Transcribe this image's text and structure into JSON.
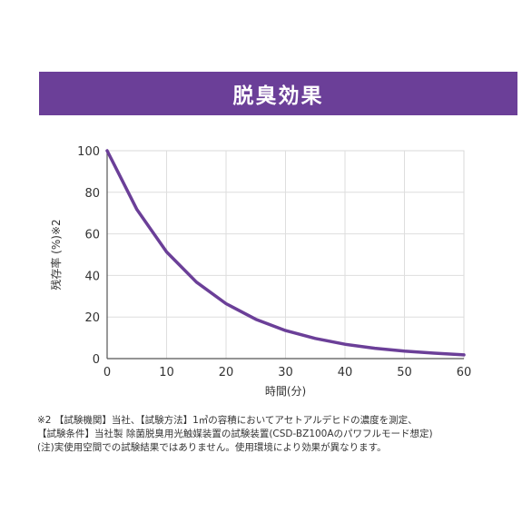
{
  "banner": {
    "title": "脱臭効果"
  },
  "chart_data": {
    "type": "line",
    "title": "",
    "xlabel": "時間(分)",
    "ylabel": "残存率 (%)※2",
    "xlim": [
      0,
      60
    ],
    "ylim": [
      0,
      100
    ],
    "xticks": [
      0,
      10,
      20,
      30,
      40,
      50,
      60
    ],
    "yticks": [
      0,
      20,
      40,
      60,
      80,
      100
    ],
    "grid": true,
    "line_color": "#6b3f98",
    "series": [
      {
        "x": [
          0,
          5,
          10,
          15,
          20,
          25,
          30,
          35,
          40,
          45,
          50,
          55,
          60
        ],
        "values": [
          100,
          71.7,
          51.3,
          36.8,
          26.4,
          18.9,
          13.5,
          9.7,
          6.9,
          5.0,
          3.6,
          2.6,
          1.8
        ]
      }
    ]
  },
  "notes": [
    "※2 【試験機関】当社、【試験方法】1㎥の容積においてアセトアルデヒドの濃度を測定、",
    "【試験条件】当社製 除菌脱臭用光触媒装置の試験装置(CSD-BZ100Aのパワフルモード想定)",
    "(注)実使用空間での試験結果ではありません。使用環境により効果が異なります。"
  ]
}
